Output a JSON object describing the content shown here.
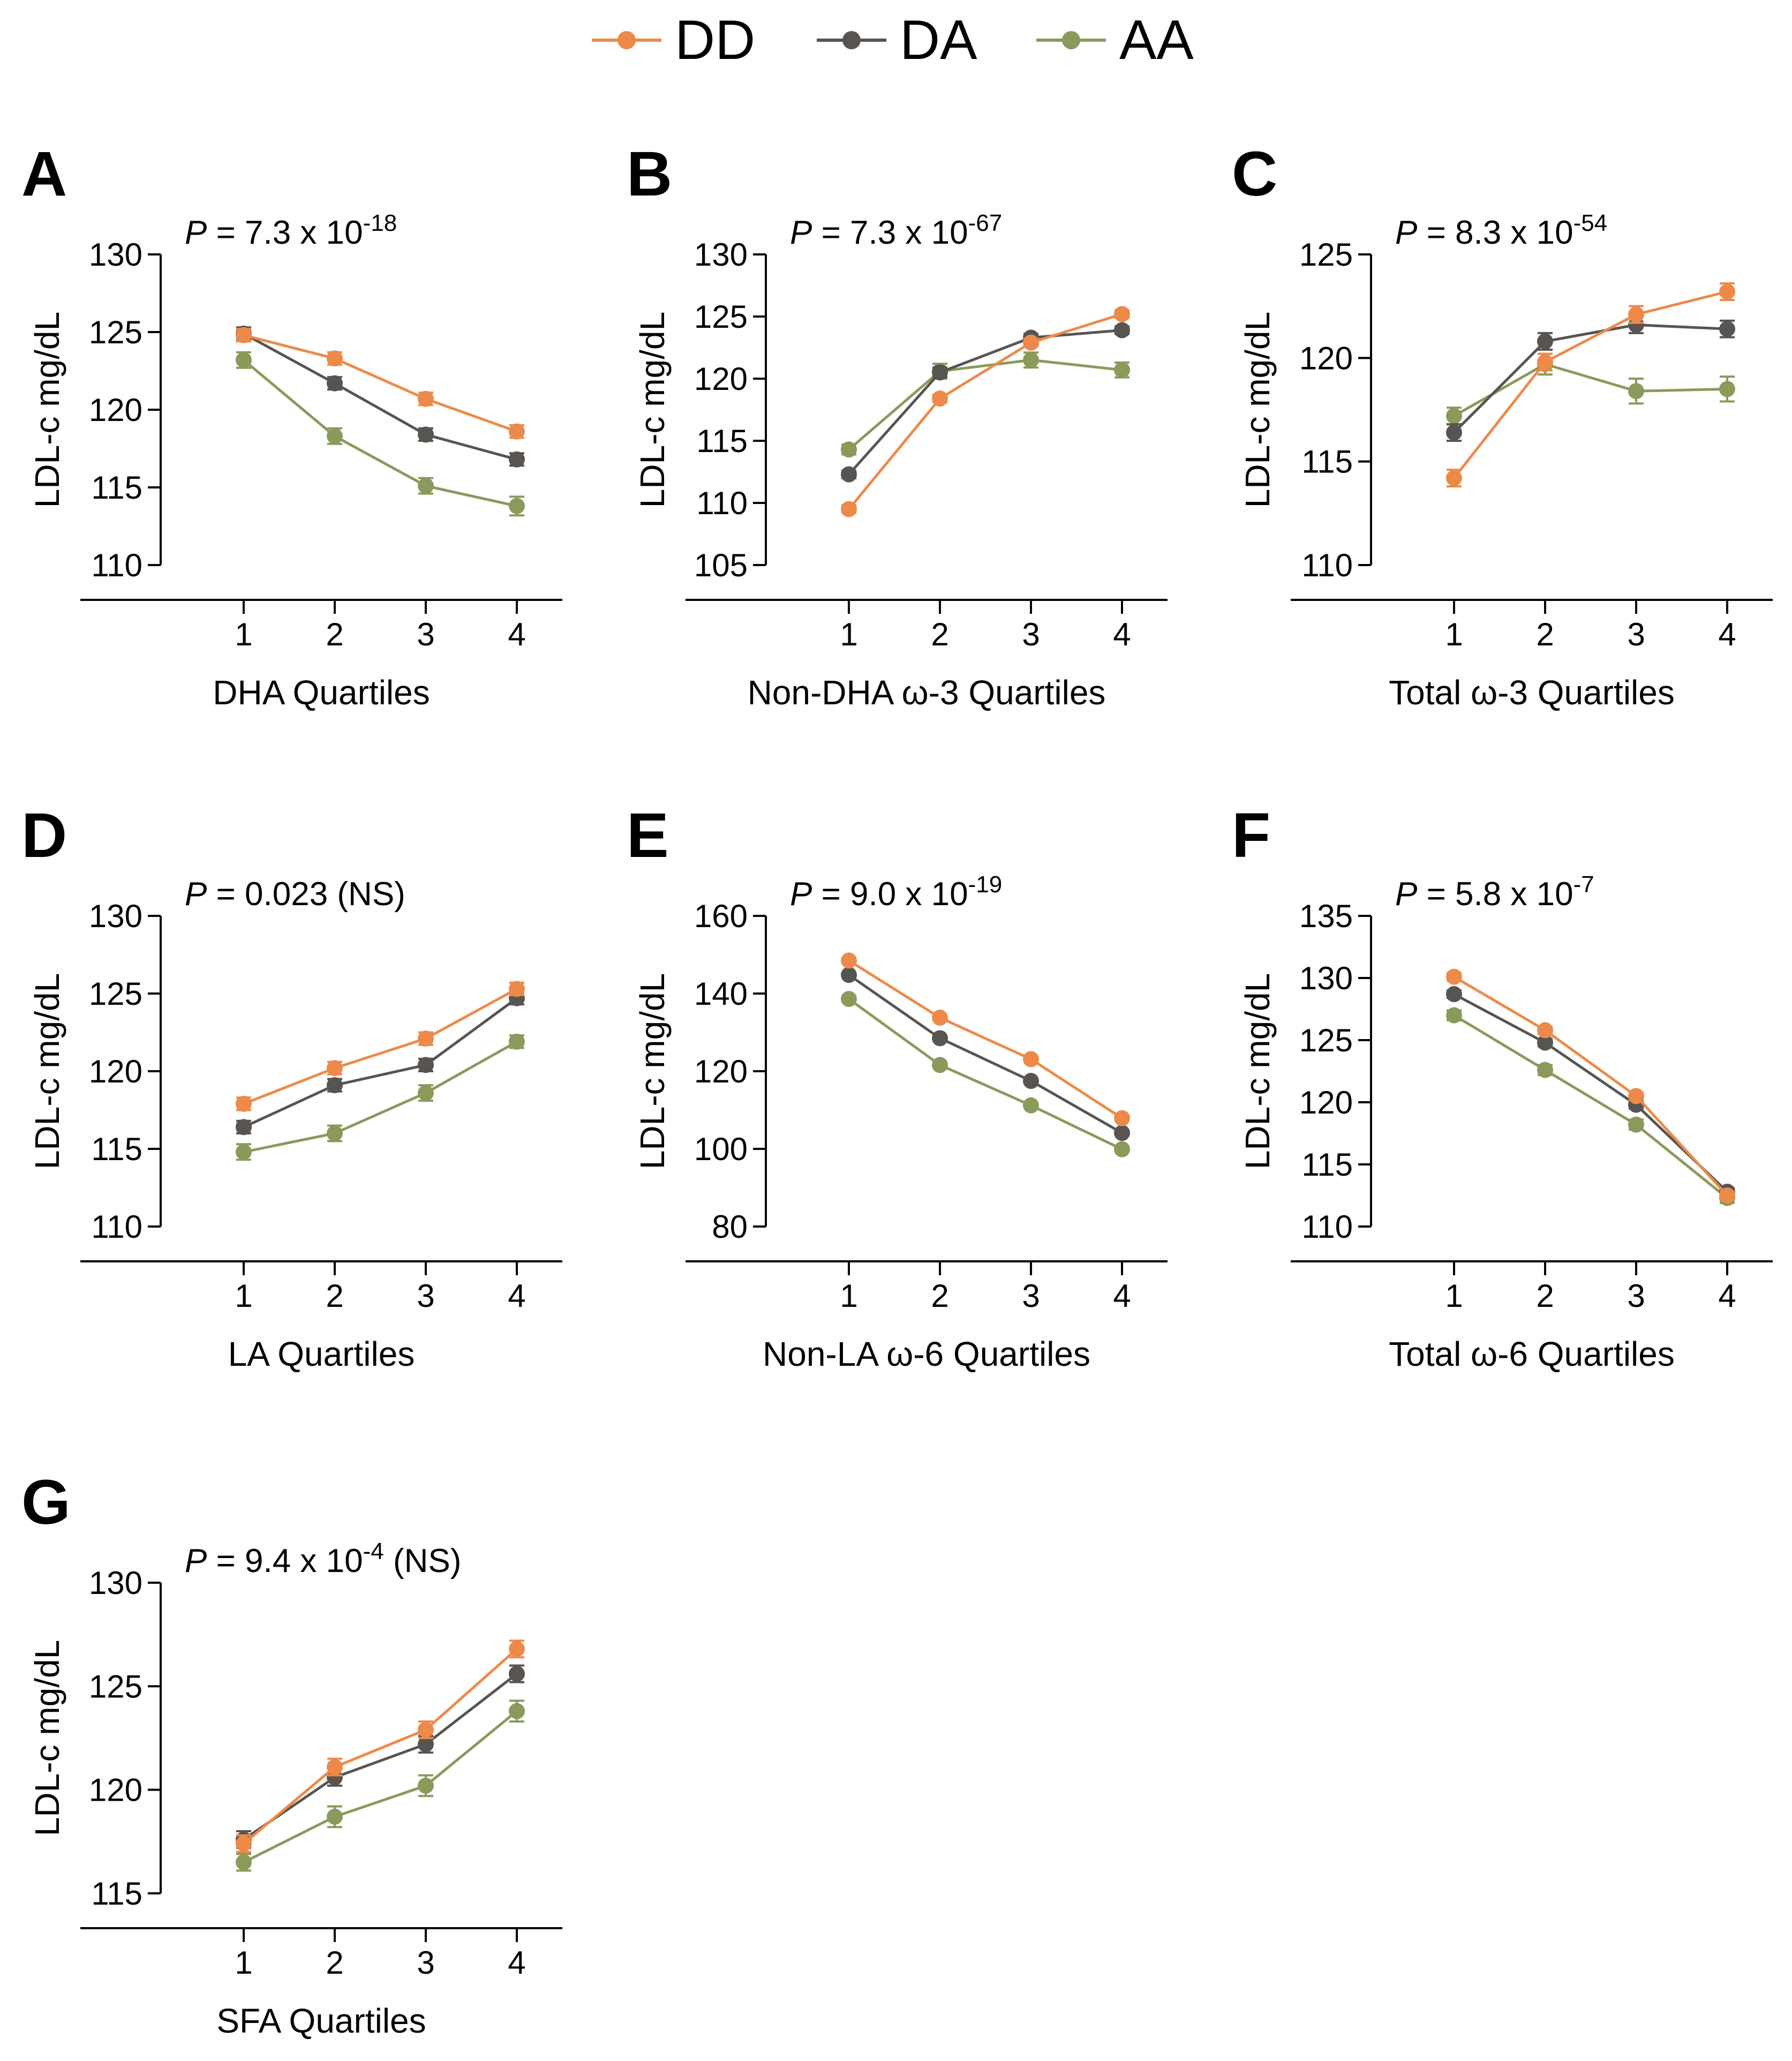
{
  "legend": [
    {
      "name": "DD",
      "color": "#ED8A4A"
    },
    {
      "name": "DA",
      "color": "#575451"
    },
    {
      "name": "AA",
      "color": "#8A9A5B"
    }
  ],
  "chart_data": [
    {
      "type": "line",
      "panel": "A",
      "p_prefix": "P",
      "p_text": " = 7.3 x 10",
      "p_exp": "-18",
      "p_suffix": "",
      "xlabel": "DHA Quartiles",
      "ylabel": "LDL-c mg/dL",
      "categories": [
        "1",
        "2",
        "3",
        "4"
      ],
      "ylim": [
        110,
        130
      ],
      "yticks": [
        110,
        115,
        120,
        125,
        130
      ],
      "series": [
        {
          "name": "DD",
          "values": [
            124.8,
            123.3,
            120.7,
            118.6
          ],
          "errors": [
            0.4,
            0.4,
            0.4,
            0.4
          ]
        },
        {
          "name": "DA",
          "values": [
            124.9,
            121.7,
            118.4,
            116.8
          ],
          "errors": [
            0.4,
            0.4,
            0.4,
            0.4
          ]
        },
        {
          "name": "AA",
          "values": [
            123.2,
            118.3,
            115.1,
            113.8
          ],
          "errors": [
            0.5,
            0.5,
            0.5,
            0.6
          ]
        }
      ]
    },
    {
      "type": "line",
      "panel": "B",
      "p_prefix": "P",
      "p_text": " = 7.3 x 10",
      "p_exp": "-67",
      "p_suffix": "",
      "xlabel": "Non-DHA ω-3 Quartiles",
      "ylabel": "LDL-c mg/dL",
      "categories": [
        "1",
        "2",
        "3",
        "4"
      ],
      "ylim": [
        105,
        130
      ],
      "yticks": [
        105,
        110,
        115,
        120,
        125,
        130
      ],
      "series": [
        {
          "name": "DD",
          "values": [
            109.5,
            118.4,
            122.9,
            125.2
          ],
          "errors": [
            0.3,
            0.3,
            0.3,
            0.3
          ]
        },
        {
          "name": "DA",
          "values": [
            112.3,
            120.5,
            123.3,
            123.9
          ],
          "errors": [
            0.3,
            0.4,
            0.3,
            0.3
          ]
        },
        {
          "name": "AA",
          "values": [
            114.3,
            120.6,
            121.5,
            120.7
          ],
          "errors": [
            0.4,
            0.6,
            0.6,
            0.6
          ]
        }
      ]
    },
    {
      "type": "line",
      "panel": "C",
      "p_prefix": "P",
      "p_text": " = 8.3 x 10",
      "p_exp": "-54",
      "p_suffix": "",
      "xlabel": "Total ω-3 Quartiles",
      "ylabel": "LDL-c mg/dL",
      "categories": [
        "1",
        "2",
        "3",
        "4"
      ],
      "ylim": [
        110,
        125
      ],
      "yticks": [
        110,
        115,
        120,
        125
      ],
      "series": [
        {
          "name": "DD",
          "values": [
            114.2,
            119.8,
            122.1,
            123.2
          ],
          "errors": [
            0.4,
            0.4,
            0.4,
            0.4
          ]
        },
        {
          "name": "DA",
          "values": [
            116.4,
            120.8,
            121.6,
            121.4
          ],
          "errors": [
            0.4,
            0.4,
            0.4,
            0.4
          ]
        },
        {
          "name": "AA",
          "values": [
            117.2,
            119.7,
            118.4,
            118.5
          ],
          "errors": [
            0.4,
            0.5,
            0.6,
            0.6
          ]
        }
      ]
    },
    {
      "type": "line",
      "panel": "D",
      "p_prefix": "P",
      "p_text": " = 0.023 (NS)",
      "p_exp": "",
      "p_suffix": "",
      "xlabel": "LA Quartiles",
      "ylabel": "LDL-c mg/dL",
      "categories": [
        "1",
        "2",
        "3",
        "4"
      ],
      "ylim": [
        110,
        130
      ],
      "yticks": [
        110,
        115,
        120,
        125,
        130
      ],
      "series": [
        {
          "name": "DD",
          "values": [
            117.9,
            120.2,
            122.1,
            125.3
          ],
          "errors": [
            0.4,
            0.4,
            0.4,
            0.4
          ]
        },
        {
          "name": "DA",
          "values": [
            116.4,
            119.1,
            120.4,
            124.7
          ],
          "errors": [
            0.4,
            0.4,
            0.4,
            0.4
          ]
        },
        {
          "name": "AA",
          "values": [
            114.8,
            116.0,
            118.6,
            121.9
          ],
          "errors": [
            0.5,
            0.5,
            0.5,
            0.4
          ]
        }
      ]
    },
    {
      "type": "line",
      "panel": "E",
      "p_prefix": "P",
      "p_text": " = 9.0 x 10",
      "p_exp": "-19",
      "p_suffix": "",
      "xlabel": "Non-LA ω-6 Quartiles",
      "ylabel": "LDL-c mg/dL",
      "categories": [
        "1",
        "2",
        "3",
        "4"
      ],
      "ylim": [
        80,
        160
      ],
      "yticks": [
        80,
        100,
        120,
        140,
        160
      ],
      "series": [
        {
          "name": "DD",
          "values": [
            148.5,
            133.8,
            123.1,
            107.9
          ],
          "errors": [
            0.5,
            0.5,
            0.5,
            0.5
          ]
        },
        {
          "name": "DA",
          "values": [
            144.8,
            128.5,
            117.5,
            104.1
          ],
          "errors": [
            0.5,
            0.5,
            0.5,
            0.5
          ]
        },
        {
          "name": "AA",
          "values": [
            138.6,
            121.6,
            111.2,
            99.9
          ],
          "errors": [
            0.6,
            0.6,
            0.6,
            0.6
          ]
        }
      ]
    },
    {
      "type": "line",
      "panel": "F",
      "p_prefix": "P",
      "p_text": " = 5.8 x 10",
      "p_exp": "-7",
      "p_suffix": "",
      "xlabel": "Total ω-6 Quartiles",
      "ylabel": "LDL-c mg/dL",
      "categories": [
        "1",
        "2",
        "3",
        "4"
      ],
      "ylim": [
        110,
        135
      ],
      "yticks": [
        110,
        115,
        120,
        125,
        130,
        135
      ],
      "series": [
        {
          "name": "DD",
          "values": [
            130.1,
            125.8,
            120.5,
            112.5
          ],
          "errors": [
            0.3,
            0.3,
            0.3,
            0.3
          ]
        },
        {
          "name": "DA",
          "values": [
            128.7,
            124.8,
            119.8,
            112.8
          ],
          "errors": [
            0.3,
            0.3,
            0.3,
            0.3
          ]
        },
        {
          "name": "AA",
          "values": [
            127.0,
            122.6,
            118.2,
            112.3
          ],
          "errors": [
            0.4,
            0.4,
            0.4,
            0.4
          ]
        }
      ]
    },
    {
      "type": "line",
      "panel": "G",
      "p_prefix": "P",
      "p_text": " = 9.4 x 10",
      "p_exp": "-4",
      "p_suffix": " (NS)",
      "xlabel": "SFA Quartiles",
      "ylabel": "LDL-c mg/dL",
      "categories": [
        "1",
        "2",
        "3",
        "4"
      ],
      "ylim": [
        115,
        130
      ],
      "yticks": [
        115,
        120,
        125,
        130
      ],
      "series": [
        {
          "name": "DD",
          "values": [
            117.4,
            121.1,
            122.9,
            126.8
          ],
          "errors": [
            0.4,
            0.4,
            0.4,
            0.4
          ]
        },
        {
          "name": "DA",
          "values": [
            117.6,
            120.6,
            122.2,
            125.6
          ],
          "errors": [
            0.4,
            0.4,
            0.4,
            0.4
          ]
        },
        {
          "name": "AA",
          "values": [
            116.5,
            118.7,
            120.2,
            123.8
          ],
          "errors": [
            0.4,
            0.5,
            0.5,
            0.5
          ]
        }
      ]
    }
  ]
}
